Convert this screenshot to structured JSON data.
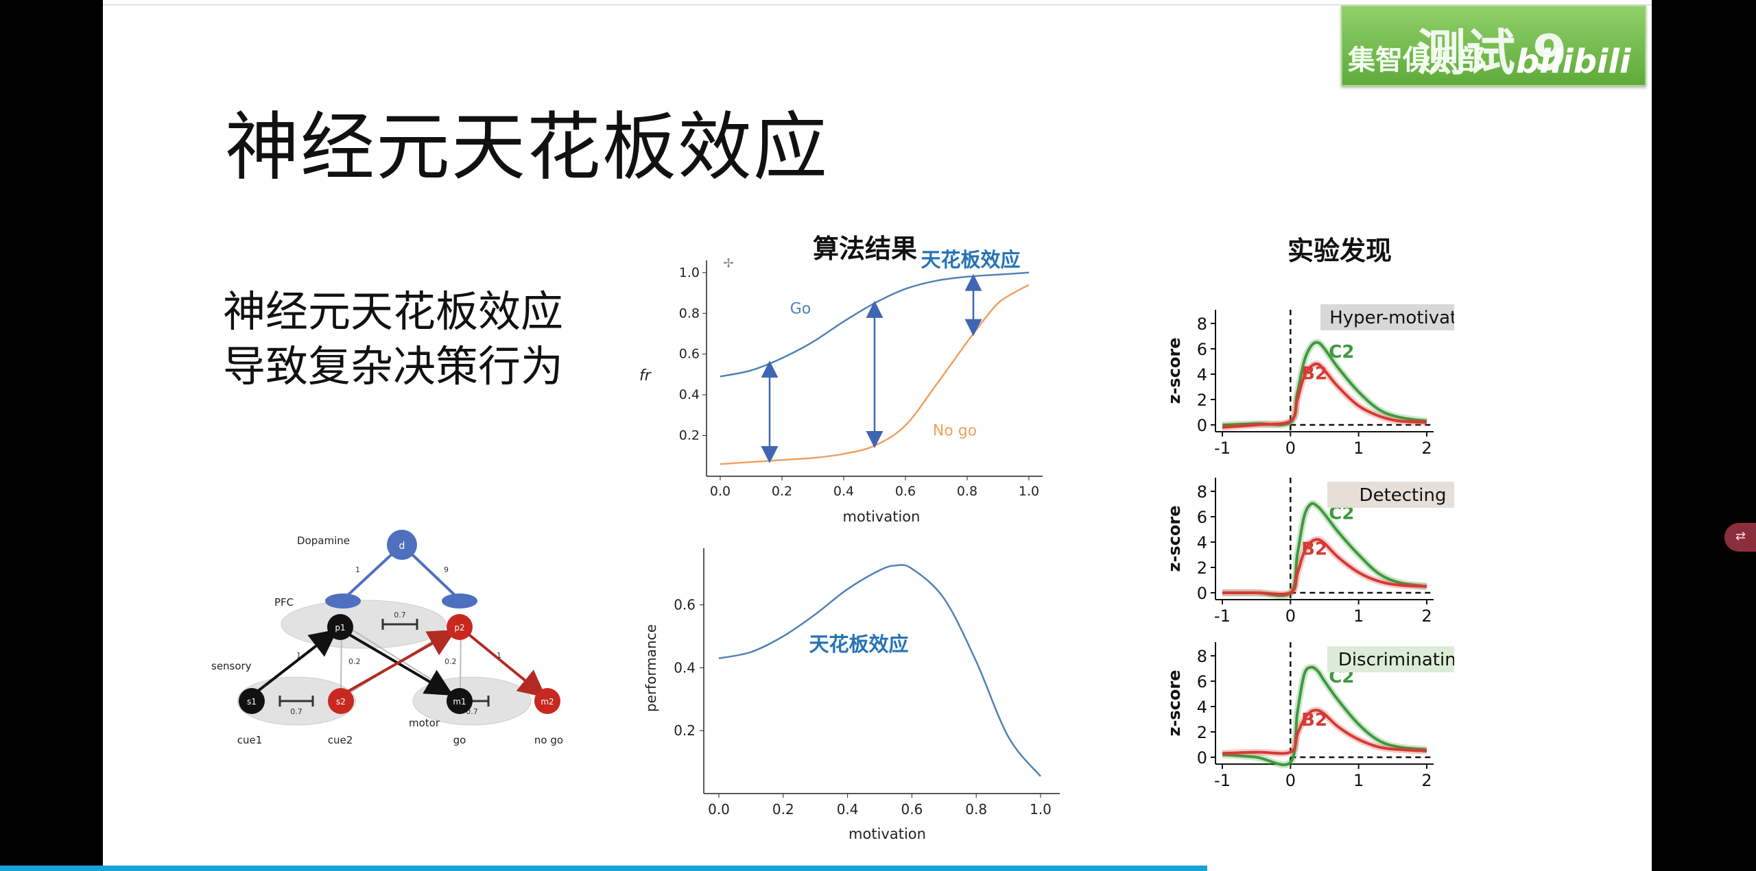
{
  "slide": {
    "title": "神经元天花板效应",
    "subtitle_lines": [
      "神经元天花板效应",
      "导致复杂决策行为"
    ],
    "algo_title": "算法结果",
    "exp_title": "实验发现"
  },
  "logo": {
    "text": "集智俱乐部",
    "test": "测试 9",
    "bili": "bilibili"
  },
  "network": {
    "nodes": {
      "d": "d",
      "p1": "p1",
      "p2": "p2",
      "s1": "s1",
      "s2": "s2",
      "m1": "m1",
      "m2": "m2"
    },
    "labels": {
      "dopamine": "Dopamine",
      "pfc": "PFC",
      "sensory": "sensory",
      "motor": "motor",
      "cue1": "cue1",
      "cue2": "cue2",
      "go": "go",
      "no_go": "no go"
    },
    "weights": {
      "w1": "1",
      "w9": "9",
      "pfc_inhib": "0.7",
      "sens_inhib": "0.7",
      "motor_inhib": "0.7",
      "s1p1": "1",
      "s2p1": "0.2",
      "m1p2": "0.2",
      "m2p2": "1"
    }
  },
  "chart_data": [
    {
      "type": "line",
      "xlabel": "motivation",
      "ylabel": "fr",
      "xlim": [
        0.0,
        1.0
      ],
      "xticks": [
        "0.0",
        "0.2",
        "0.4",
        "0.6",
        "0.8",
        "1.0"
      ],
      "yticks": [
        "0.2",
        "0.4",
        "0.6",
        "0.8",
        "1.0"
      ],
      "series": [
        {
          "name": "Go",
          "color": "#4f81b7",
          "x": [
            0.0,
            0.1,
            0.2,
            0.3,
            0.4,
            0.5,
            0.6,
            0.7,
            0.8,
            0.9,
            1.0
          ],
          "y": [
            0.49,
            0.52,
            0.58,
            0.66,
            0.76,
            0.85,
            0.92,
            0.96,
            0.98,
            0.99,
            1.0
          ]
        },
        {
          "name": "No go",
          "color": "#f0a060",
          "x": [
            0.0,
            0.1,
            0.2,
            0.3,
            0.4,
            0.5,
            0.6,
            0.7,
            0.8,
            0.85,
            0.9,
            0.95,
            1.0
          ],
          "y": [
            0.06,
            0.07,
            0.08,
            0.09,
            0.11,
            0.15,
            0.25,
            0.45,
            0.66,
            0.76,
            0.85,
            0.9,
            0.94
          ]
        }
      ],
      "arrows_x": [
        0.16,
        0.5,
        0.82
      ],
      "annotation": "天花板效应"
    },
    {
      "type": "line",
      "xlabel": "motivation",
      "ylabel": "performance",
      "xlim": [
        0.0,
        1.0
      ],
      "xticks": [
        "0.0",
        "0.2",
        "0.4",
        "0.6",
        "0.8",
        "1.0"
      ],
      "yticks": [
        "0.2",
        "0.4",
        "0.6"
      ],
      "series": [
        {
          "color": "#4f81b7",
          "x": [
            0.0,
            0.1,
            0.2,
            0.3,
            0.4,
            0.5,
            0.55,
            0.6,
            0.7,
            0.8,
            0.9,
            1.0
          ],
          "y": [
            0.43,
            0.45,
            0.5,
            0.57,
            0.65,
            0.71,
            0.725,
            0.715,
            0.62,
            0.42,
            0.18,
            0.055
          ]
        }
      ],
      "annotation": "天花板效应"
    },
    {
      "type": "line",
      "label": "Hyper-motivated",
      "ylabel": "z-score",
      "xlim": [
        -1,
        2
      ],
      "ylim": [
        0,
        8
      ],
      "xticks": [
        "-1",
        "0",
        "1",
        "2"
      ],
      "yticks": [
        "0",
        "2",
        "4",
        "6",
        "8"
      ],
      "series": [
        {
          "name": "C2",
          "color": "#3e9a3c",
          "x": [
            -1,
            -0.5,
            0,
            0.1,
            0.2,
            0.3,
            0.4,
            0.5,
            0.7,
            1.0,
            1.3,
            1.6,
            2.0
          ],
          "y": [
            0,
            0.1,
            0.2,
            2.5,
            5.0,
            6.2,
            6.5,
            6.0,
            4.5,
            2.6,
            1.2,
            0.6,
            0.3
          ]
        },
        {
          "name": "B2",
          "color": "#d63a34",
          "x": [
            -1,
            -0.5,
            0,
            0.1,
            0.2,
            0.3,
            0.4,
            0.5,
            0.7,
            1.0,
            1.3,
            1.6,
            2.0
          ],
          "y": [
            -0.2,
            0,
            0.3,
            2.0,
            3.8,
            4.6,
            4.8,
            4.3,
            3.0,
            1.5,
            0.7,
            0.3,
            0.2
          ]
        }
      ]
    },
    {
      "type": "line",
      "label": "Detecting",
      "ylabel": "z-score",
      "xlim": [
        -1,
        2
      ],
      "ylim": [
        0,
        8
      ],
      "xticks": [
        "-1",
        "0",
        "1",
        "2"
      ],
      "yticks": [
        "0",
        "2",
        "4",
        "6",
        "8"
      ],
      "series": [
        {
          "name": "C2",
          "color": "#3e9a3c",
          "x": [
            -1,
            -0.5,
            0,
            0.1,
            0.2,
            0.3,
            0.4,
            0.5,
            0.7,
            1.0,
            1.3,
            1.6,
            2.0
          ],
          "y": [
            0,
            0,
            0,
            3.0,
            6.0,
            7.0,
            6.8,
            6.2,
            4.8,
            3.0,
            1.5,
            0.8,
            0.5
          ]
        },
        {
          "name": "B2",
          "color": "#d63a34",
          "x": [
            -1,
            -0.5,
            0,
            0.1,
            0.2,
            0.3,
            0.4,
            0.5,
            0.7,
            1.0,
            1.3,
            1.6,
            2.0
          ],
          "y": [
            0,
            0,
            0,
            1.5,
            3.2,
            4.0,
            4.2,
            3.9,
            2.8,
            1.6,
            0.9,
            0.6,
            0.5
          ]
        }
      ]
    },
    {
      "type": "line",
      "label": "Discriminating",
      "ylabel": "z-score",
      "xlim": [
        -1,
        2
      ],
      "ylim": [
        0,
        8
      ],
      "xticks": [
        "-1",
        "0",
        "1",
        "2"
      ],
      "yticks": [
        "0",
        "2",
        "4",
        "6",
        "8"
      ],
      "series": [
        {
          "name": "C2",
          "color": "#3e9a3c",
          "x": [
            -1,
            -0.5,
            0,
            0.1,
            0.2,
            0.3,
            0.4,
            0.5,
            0.7,
            1.0,
            1.3,
            1.6,
            2.0
          ],
          "y": [
            0.2,
            0,
            -0.4,
            3.5,
            6.5,
            7.1,
            6.8,
            6.0,
            4.5,
            2.6,
            1.3,
            0.8,
            0.6
          ]
        },
        {
          "name": "B2",
          "color": "#d63a34",
          "x": [
            -1,
            -0.5,
            0,
            0.1,
            0.2,
            0.3,
            0.4,
            0.5,
            0.7,
            1.0,
            1.3,
            1.6,
            2.0
          ],
          "y": [
            0.3,
            0.4,
            0.4,
            1.8,
            3.0,
            3.6,
            3.7,
            3.4,
            2.4,
            1.4,
            0.8,
            0.6,
            0.5
          ]
        }
      ]
    }
  ]
}
